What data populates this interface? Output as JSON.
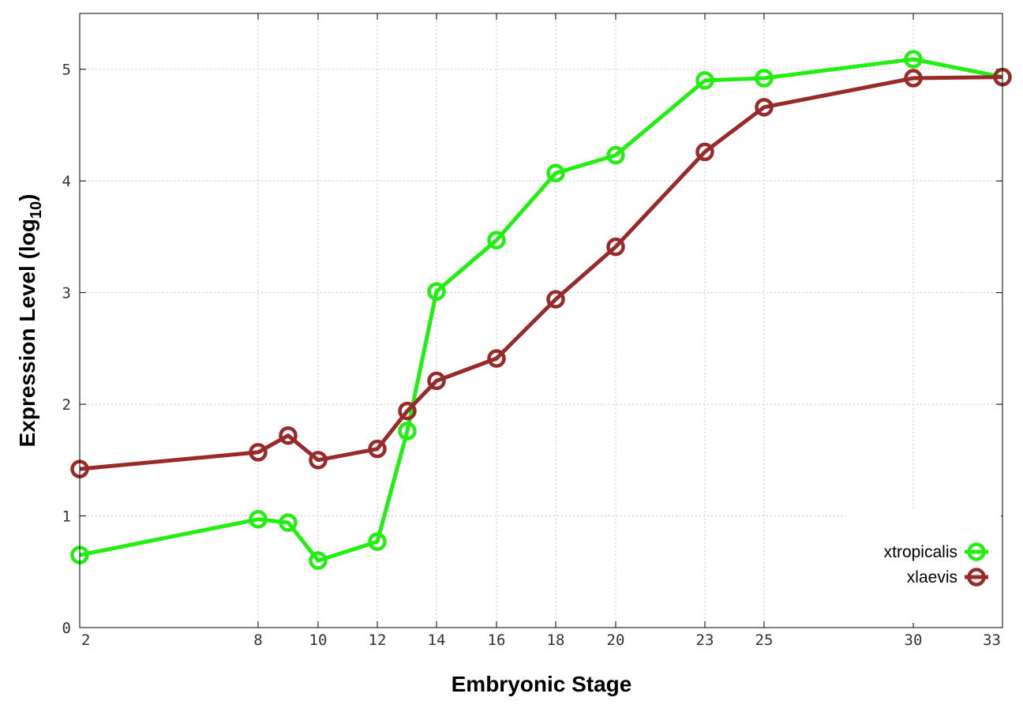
{
  "chart_data": {
    "type": "line",
    "title": "",
    "xlabel": "Embryonic Stage",
    "ylabel_main": "Expression Level (log",
    "ylabel_sub": "10",
    "ylabel_close": ")",
    "x_ticks": [
      2,
      8,
      10,
      12,
      14,
      16,
      18,
      20,
      23,
      25,
      30,
      33
    ],
    "y_ticks": [
      0,
      1,
      2,
      3,
      4,
      5
    ],
    "ylim": [
      0,
      5.5
    ],
    "grid": true,
    "legend_position": "bottom-right",
    "x": [
      2,
      8,
      9,
      10,
      12,
      13,
      14,
      16,
      18,
      20,
      23,
      25,
      30,
      33
    ],
    "series": [
      {
        "name": "xtropicalis",
        "color": "#22ee11",
        "values": [
          0.65,
          0.97,
          0.94,
          0.6,
          0.77,
          1.76,
          3.01,
          3.47,
          4.07,
          4.23,
          4.9,
          4.92,
          5.09,
          4.93
        ]
      },
      {
        "name": "xlaevis",
        "color": "#992a2a",
        "values": [
          1.42,
          1.57,
          1.72,
          1.5,
          1.6,
          1.94,
          2.21,
          2.41,
          2.94,
          3.41,
          4.26,
          4.66,
          4.92,
          4.93
        ]
      }
    ]
  }
}
